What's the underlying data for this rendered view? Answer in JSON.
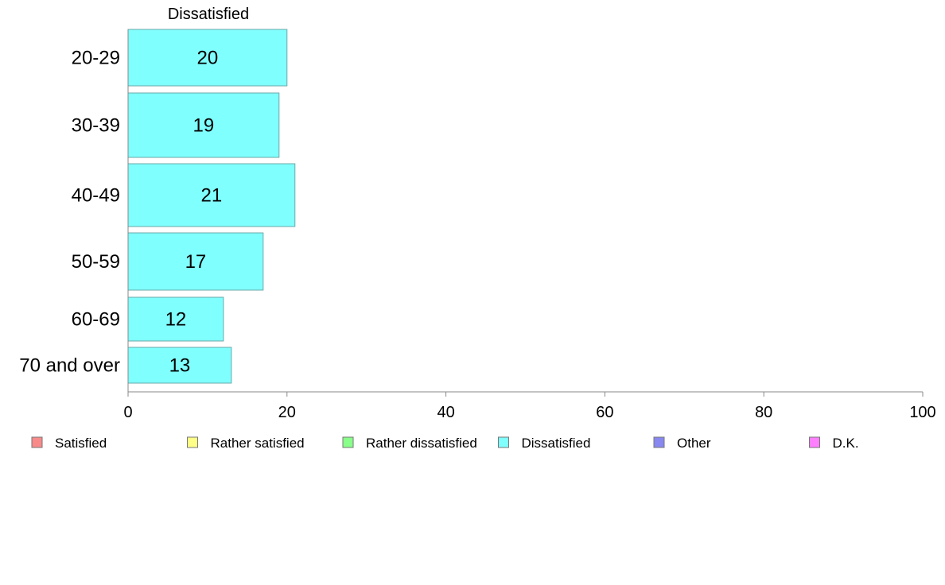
{
  "chart_data": {
    "type": "bar",
    "orientation": "horizontal",
    "title": "Dissatisfied",
    "categories": [
      "20-29",
      "30-39",
      "40-49",
      "50-59",
      "60-69",
      "70 and over"
    ],
    "values": [
      20,
      19,
      21,
      17,
      12,
      13
    ],
    "xlim": [
      0,
      100
    ],
    "xticks": [
      0,
      20,
      40,
      60,
      80,
      100
    ],
    "grid": false,
    "bar_color": "#80ffff",
    "legend_position": "bottom",
    "legend": [
      {
        "name": "Satisfied",
        "color": "#f88a8a"
      },
      {
        "name": "Rather satisfied",
        "color": "#ffff88"
      },
      {
        "name": "Rather dissatisfied",
        "color": "#88ff88"
      },
      {
        "name": "Dissatisfied",
        "color": "#80ffff"
      },
      {
        "name": "Other",
        "color": "#8888f0"
      },
      {
        "name": "D.K.",
        "color": "#ff80ff"
      }
    ]
  }
}
